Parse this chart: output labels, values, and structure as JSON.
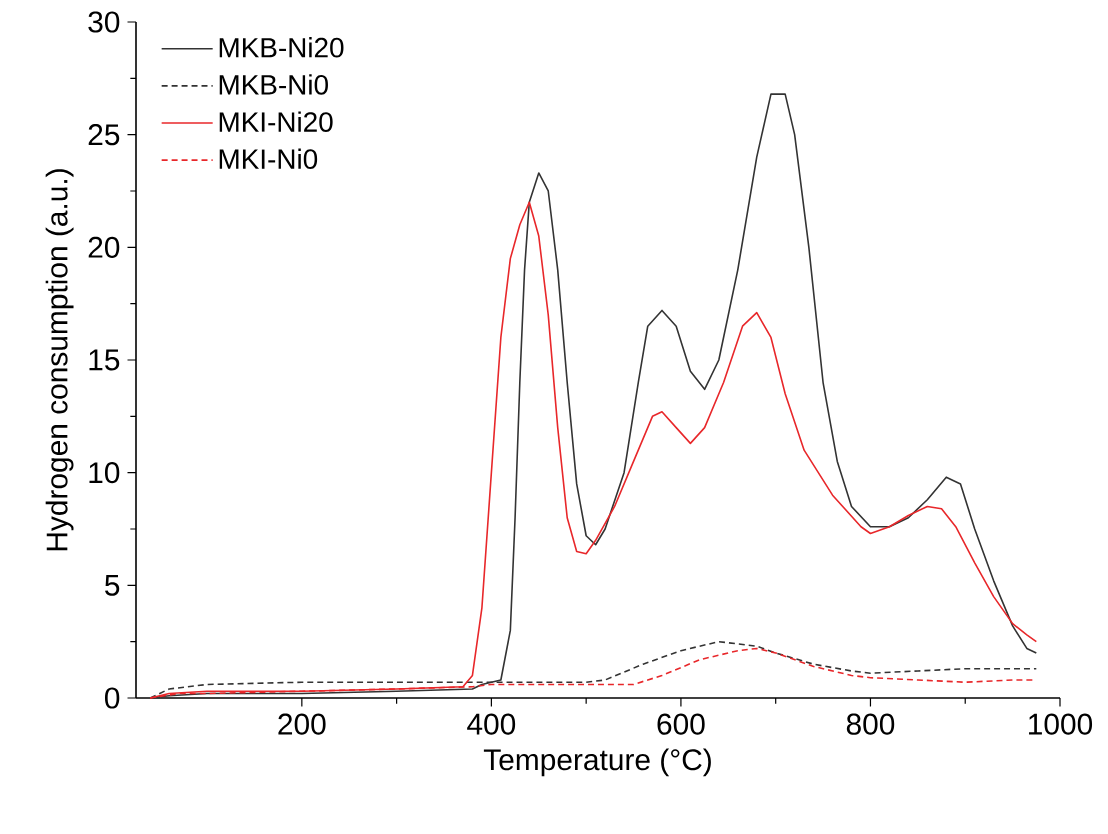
{
  "chart_data": {
    "type": "line",
    "xlabel": "Temperature (°C)",
    "ylabel": "Hydrogen consumption (a.u.)",
    "xlim": [
      25,
      1000
    ],
    "ylim": [
      0,
      30
    ],
    "xticks": [
      200,
      400,
      600,
      800,
      1000
    ],
    "yticks": [
      0,
      5,
      10,
      15,
      20,
      25,
      30
    ],
    "grid": false,
    "legend": "top left",
    "marker": "none",
    "series": [
      {
        "name": "MKB-Ni20",
        "color": "#333333",
        "line_style": "solid",
        "x": [
          40,
          60,
          100,
          200,
          300,
          380,
          390,
          410,
          420,
          425,
          430,
          435,
          440,
          450,
          460,
          470,
          480,
          490,
          500,
          510,
          520,
          540,
          555,
          565,
          580,
          595,
          610,
          625,
          640,
          660,
          680,
          695,
          710,
          720,
          735,
          750,
          765,
          780,
          800,
          820,
          840,
          860,
          880,
          895,
          910,
          930,
          950,
          965,
          975
        ],
        "values": [
          0,
          0.1,
          0.2,
          0.2,
          0.3,
          0.4,
          0.6,
          0.8,
          3,
          8,
          14,
          19,
          22,
          23.3,
          22.5,
          19,
          14,
          9.5,
          7.2,
          6.8,
          7.5,
          10,
          14,
          16.5,
          17.2,
          16.5,
          14.5,
          13.7,
          15,
          19,
          24,
          26.8,
          26.8,
          25,
          20,
          14,
          10.5,
          8.5,
          7.6,
          7.6,
          8,
          8.8,
          9.8,
          9.5,
          7.5,
          5.2,
          3.2,
          2.2,
          2
        ]
      },
      {
        "name": "MKB-Ni0",
        "color": "#333333",
        "line_style": "dashed",
        "x": [
          40,
          60,
          100,
          200,
          300,
          400,
          500,
          520,
          560,
          600,
          640,
          680,
          700,
          740,
          780,
          800,
          850,
          900,
          975
        ],
        "values": [
          0,
          0.4,
          0.6,
          0.7,
          0.7,
          0.7,
          0.7,
          0.8,
          1.5,
          2.1,
          2.5,
          2.3,
          2,
          1.5,
          1.2,
          1.1,
          1.2,
          1.3,
          1.3
        ]
      },
      {
        "name": "MKI-Ni20",
        "color": "#e8272a",
        "line_style": "solid",
        "x": [
          40,
          60,
          100,
          200,
          300,
          370,
          380,
          390,
          400,
          410,
          420,
          430,
          440,
          450,
          460,
          470,
          480,
          490,
          500,
          510,
          530,
          550,
          570,
          580,
          595,
          610,
          625,
          645,
          665,
          680,
          695,
          710,
          730,
          760,
          790,
          800,
          820,
          840,
          860,
          875,
          890,
          910,
          930,
          950,
          965,
          975
        ],
        "values": [
          0,
          0.2,
          0.3,
          0.3,
          0.4,
          0.5,
          1,
          4,
          10,
          16,
          19.5,
          21,
          22,
          20.5,
          17,
          12,
          8,
          6.5,
          6.4,
          7,
          8.5,
          10.5,
          12.5,
          12.7,
          12,
          11.3,
          12,
          14,
          16.5,
          17.1,
          16,
          13.5,
          11,
          9,
          7.6,
          7.3,
          7.6,
          8.1,
          8.5,
          8.4,
          7.6,
          6,
          4.5,
          3.3,
          2.8,
          2.5
        ]
      },
      {
        "name": "MKI-Ni0",
        "color": "#e8272a",
        "line_style": "dashed",
        "x": [
          40,
          70,
          100,
          200,
          300,
          380,
          400,
          550,
          580,
          620,
          660,
          680,
          700,
          740,
          780,
          800,
          850,
          900,
          950,
          975
        ],
        "values": [
          0,
          0.2,
          0.2,
          0.3,
          0.4,
          0.5,
          0.6,
          0.6,
          1,
          1.7,
          2.1,
          2.2,
          2,
          1.4,
          1,
          0.9,
          0.8,
          0.7,
          0.8,
          0.8
        ]
      }
    ]
  }
}
